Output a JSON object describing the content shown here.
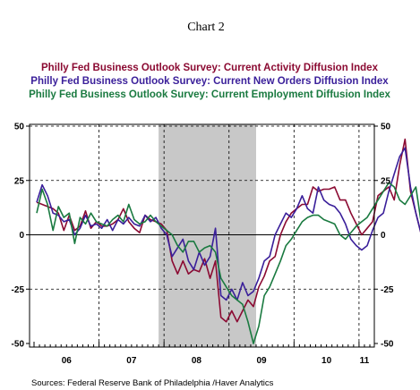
{
  "chart_data": {
    "type": "line",
    "title": "Chart 2",
    "source": "Sources:  Federal Reserve Bank of Philadelphia /Haver Analytics",
    "x_start": "2006-01",
    "x_end": "2011-02",
    "ylim": [
      -50,
      50
    ],
    "y_ticks": [
      50,
      25,
      0,
      -25,
      -50
    ],
    "y_tick_labels_left": [
      "50",
      "25",
      "0",
      "-25",
      "-50"
    ],
    "y_tick_labels_right": [
      "50",
      "25",
      "0",
      "-25",
      "-50"
    ],
    "x_tick_labels": [
      "06",
      "07",
      "08",
      "09",
      "10",
      "11"
    ],
    "recession_shading": {
      "start": "2007-12",
      "end": "2009-06",
      "color": "#c8c8c8"
    },
    "grid": "dashed at year boundaries and 25-point intervals",
    "legend_placement": "top",
    "series": [
      {
        "name": "Philly Fed Business Outlook Survey: Current Activity Diffusion Index",
        "color": "#8b0a32",
        "values": [
          15,
          14,
          13,
          12,
          10,
          2,
          9,
          2,
          4,
          11,
          3,
          6,
          4,
          4,
          5,
          7,
          12,
          6,
          3,
          1,
          9,
          7,
          6,
          5,
          2,
          -12,
          -18,
          -12,
          -18,
          -16,
          -17,
          -11,
          -20,
          -12,
          -38,
          -40,
          -35,
          -40,
          -35,
          -30,
          -33,
          -24,
          -19,
          -12,
          -10,
          0,
          6,
          10,
          12,
          14,
          14,
          22,
          20,
          21,
          21,
          22,
          16,
          16,
          10,
          5,
          0,
          3,
          6,
          18,
          20,
          22,
          16,
          32,
          44,
          20,
          10,
          0,
          -8,
          3
        ]
      },
      {
        "name": "Philly Fed Business Outlook Survey: Current New Orders Diffusion Index",
        "color": "#3a1f9a",
        "values": [
          15,
          23,
          18,
          10,
          9,
          6,
          7,
          0,
          3,
          9,
          4,
          5,
          3,
          7,
          2,
          7,
          5,
          8,
          5,
          4,
          9,
          6,
          8,
          3,
          0,
          -10,
          -6,
          -2,
          -12,
          -16,
          -8,
          -14,
          -10,
          3,
          -28,
          -30,
          -25,
          -30,
          -22,
          -28,
          -26,
          -20,
          -12,
          -10,
          0,
          5,
          10,
          8,
          12,
          18,
          12,
          10,
          22,
          16,
          14,
          13,
          10,
          5,
          -2,
          -5,
          -7,
          -5,
          2,
          8,
          10,
          20,
          28,
          36,
          40,
          22,
          10,
          0,
          -5,
          2
        ]
      },
      {
        "name": "Philly Fed Business Outlook Survey: Current Employment Diffusion Index",
        "color": "#1a7a40",
        "values": [
          10,
          21,
          14,
          2,
          13,
          8,
          10,
          -4,
          8,
          5,
          10,
          6,
          5,
          4,
          7,
          9,
          6,
          14,
          7,
          5,
          6,
          9,
          6,
          4,
          2,
          0,
          -5,
          -8,
          -3,
          -3,
          -8,
          -6,
          -5,
          -8,
          -20,
          -24,
          -28,
          -30,
          -32,
          -40,
          -50,
          -42,
          -28,
          -24,
          -18,
          -12,
          -5,
          -2,
          2,
          6,
          8,
          9,
          9,
          7,
          6,
          5,
          0,
          -2,
          1,
          4,
          6,
          8,
          12,
          16,
          20,
          24,
          22,
          16,
          14,
          18,
          22,
          5,
          4,
          8
        ]
      }
    ]
  }
}
